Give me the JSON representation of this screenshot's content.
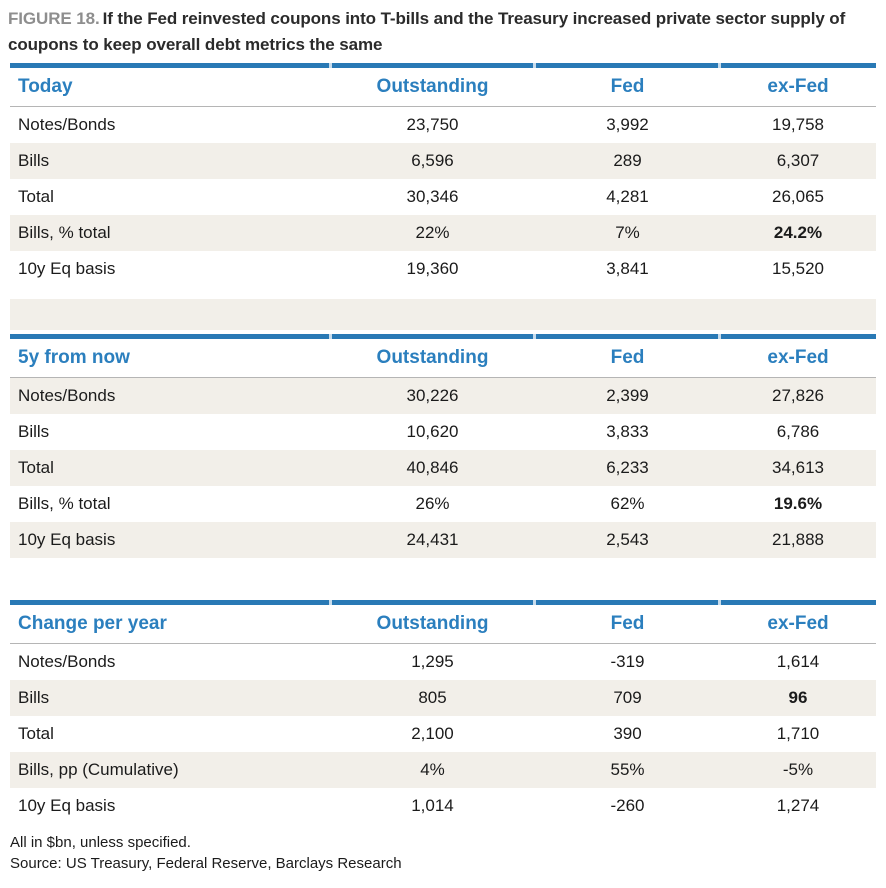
{
  "figure": {
    "label": "FIGURE 18.",
    "title": "If the Fed reinvested coupons into T-bills and the Treasury increased private sector supply of coupons to keep overall debt metrics the same"
  },
  "columns": {
    "outstanding": "Outstanding",
    "fed": "Fed",
    "exfed": "ex-Fed"
  },
  "tables": [
    {
      "title": "Today",
      "rows": [
        {
          "label": "Notes/Bonds",
          "outstanding": "23,750",
          "fed": "3,992",
          "exfed": "19,758"
        },
        {
          "label": "Bills",
          "outstanding": "6,596",
          "fed": "289",
          "exfed": "6,307"
        },
        {
          "label": "Total",
          "outstanding": "30,346",
          "fed": "4,281",
          "exfed": "26,065"
        },
        {
          "label": "Bills, % total",
          "outstanding": "22%",
          "fed": "7%",
          "exfed": "24.2%"
        },
        {
          "label": "10y Eq basis",
          "outstanding": "19,360",
          "fed": "3,841",
          "exfed": "15,520"
        }
      ]
    },
    {
      "title": "5y from now",
      "rows": [
        {
          "label": "Notes/Bonds",
          "outstanding": "30,226",
          "fed": "2,399",
          "exfed": "27,826"
        },
        {
          "label": "Bills",
          "outstanding": "10,620",
          "fed": "3,833",
          "exfed": "6,786"
        },
        {
          "label": "Total",
          "outstanding": "40,846",
          "fed": "6,233",
          "exfed": "34,613"
        },
        {
          "label": "Bills, % total",
          "outstanding": "26%",
          "fed": "62%",
          "exfed": "19.6%"
        },
        {
          "label": "10y Eq basis",
          "outstanding": "24,431",
          "fed": "2,543",
          "exfed": "21,888"
        }
      ]
    },
    {
      "title": "Change per year",
      "rows": [
        {
          "label": "Notes/Bonds",
          "outstanding": "1,295",
          "fed": "-319",
          "exfed": "1,614"
        },
        {
          "label": "Bills",
          "outstanding": "805",
          "fed": "709",
          "exfed": "96"
        },
        {
          "label": "Total",
          "outstanding": "2,100",
          "fed": "390",
          "exfed": "1,710"
        },
        {
          "label": "Bills, pp (Cumulative)",
          "outstanding": "4%",
          "fed": "55%",
          "exfed": "-5%"
        },
        {
          "label": "10y Eq basis",
          "outstanding": "1,014",
          "fed": "-260",
          "exfed": "1,274"
        }
      ]
    }
  ],
  "footnotes": {
    "units": "All in $bn, unless specified.",
    "source": "Source: US Treasury, Federal Reserve, Barclays Research"
  },
  "colors": {
    "accent_blue": "#2b7fbe",
    "border_blue": "#2979b5",
    "row_shade": "#f2efe9",
    "header_rule_gray": "#b5b5b5",
    "figure_label_gray": "#8e8e8e"
  }
}
